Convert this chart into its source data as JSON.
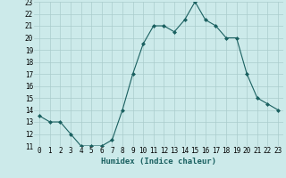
{
  "x": [
    0,
    1,
    2,
    3,
    4,
    5,
    6,
    7,
    8,
    9,
    10,
    11,
    12,
    13,
    14,
    15,
    16,
    17,
    18,
    19,
    20,
    21,
    22,
    23
  ],
  "y": [
    13.5,
    13.0,
    13.0,
    12.0,
    11.0,
    11.0,
    11.0,
    11.5,
    14.0,
    17.0,
    19.5,
    21.0,
    21.0,
    20.5,
    21.5,
    23.0,
    21.5,
    21.0,
    20.0,
    20.0,
    17.0,
    15.0,
    14.5,
    14.0
  ],
  "xlabel": "Humidex (Indice chaleur)",
  "xlim": [
    -0.5,
    23.5
  ],
  "ylim": [
    11,
    23
  ],
  "yticks": [
    11,
    12,
    13,
    14,
    15,
    16,
    17,
    18,
    19,
    20,
    21,
    22,
    23
  ],
  "xticks": [
    0,
    1,
    2,
    3,
    4,
    5,
    6,
    7,
    8,
    9,
    10,
    11,
    12,
    13,
    14,
    15,
    16,
    17,
    18,
    19,
    20,
    21,
    22,
    23
  ],
  "line_color": "#1a6060",
  "marker": "D",
  "marker_size": 2.0,
  "bg_color": "#cceaea",
  "grid_color": "#aacccc",
  "label_fontsize": 6.5,
  "tick_fontsize": 5.5
}
